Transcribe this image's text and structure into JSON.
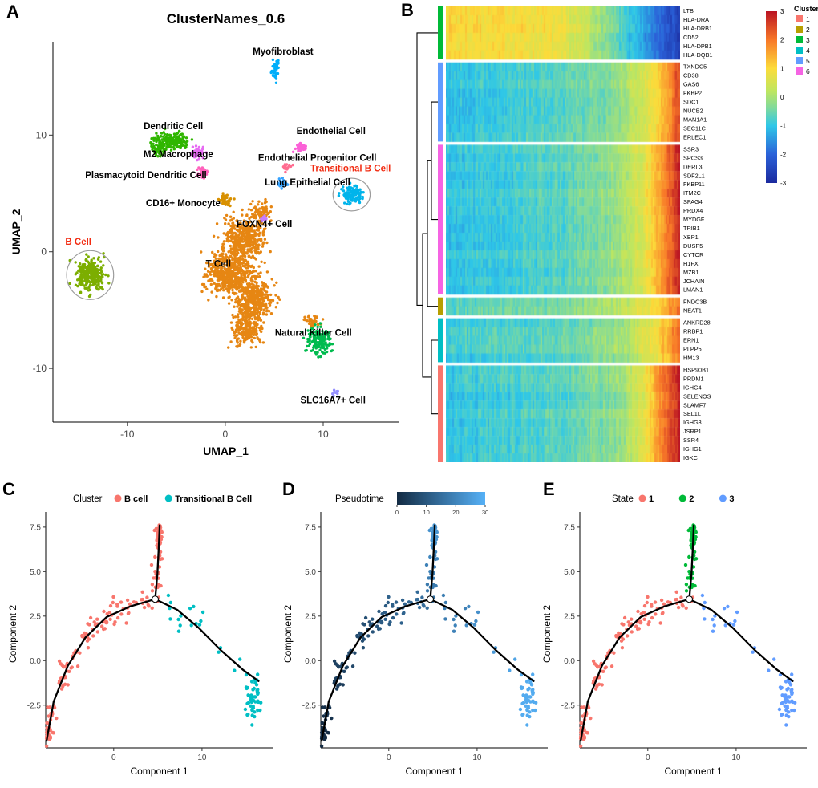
{
  "panel_labels": {
    "a": "A",
    "b": "B",
    "c": "C",
    "d": "D",
    "e": "E"
  },
  "chart_data": [
    {
      "id": "umap",
      "type": "scatter",
      "title": "ClusterNames_0.6",
      "xlabel": "UMAP_1",
      "ylabel": "UMAP_2",
      "xlim": [
        -17.6,
        17.7
      ],
      "ylim": [
        -14.6,
        18.0
      ],
      "xticks": [
        -10,
        0,
        10
      ],
      "yticks": [
        -10,
        0,
        10
      ],
      "clusters": [
        {
          "name": "T Cell",
          "color": "#E68613",
          "blobs": [
            [
              1.8,
              1.2,
              2.1,
              1.9,
              420
            ],
            [
              0.6,
              -1.9,
              2.3,
              1.9,
              520
            ],
            [
              2.9,
              -4.1,
              1.9,
              1.7,
              380
            ],
            [
              2.1,
              -6.7,
              1.5,
              1.3,
              220
            ],
            [
              3.6,
              3.4,
              0.9,
              0.8,
              70
            ],
            [
              8.9,
              -6.0,
              0.8,
              0.6,
              40
            ]
          ]
        },
        {
          "name": "B Cell",
          "color": "#7CAE00",
          "blobs": [
            [
              -13.8,
              -2.0,
              1.5,
              1.3,
              280
            ]
          ]
        },
        {
          "name": "Dendritic Cell",
          "color": "#2FB600",
          "blobs": [
            [
              -5.4,
              9.5,
              1.8,
              0.8,
              200
            ],
            [
              -6.9,
              8.7,
              0.7,
              0.5,
              40
            ]
          ]
        },
        {
          "name": "M2 Macrophage",
          "color": "#E76BF3",
          "blobs": [
            [
              -2.9,
              8.4,
              0.7,
              0.5,
              55
            ]
          ]
        },
        {
          "name": "Plasmacytoid Dendritic Cell",
          "color": "#FF62BC",
          "blobs": [
            [
              -2.4,
              6.8,
              0.55,
              0.4,
              35
            ]
          ]
        },
        {
          "name": "CD16+ Monocyte",
          "color": "#D89000",
          "blobs": [
            [
              0.0,
              4.4,
              0.6,
              0.45,
              40
            ]
          ]
        },
        {
          "name": "Myofibroblast",
          "color": "#00AEFA",
          "blobs": [
            [
              5.1,
              15.7,
              0.5,
              1.0,
              40
            ]
          ]
        },
        {
          "name": "Endothelial Cell",
          "color": "#FB61D7",
          "blobs": [
            [
              7.7,
              8.9,
              0.6,
              0.45,
              40
            ]
          ]
        },
        {
          "name": "Endothelial Progenitor Cell",
          "color": "#FF6C90",
          "blobs": [
            [
              6.2,
              7.3,
              0.5,
              0.35,
              25
            ]
          ]
        },
        {
          "name": "Lung Epithelial Cell",
          "color": "#35A2FF",
          "blobs": [
            [
              5.9,
              5.9,
              0.55,
              0.4,
              30
            ]
          ]
        },
        {
          "name": "Transitional B Cell",
          "color": "#00B4EB",
          "blobs": [
            [
              12.9,
              4.9,
              1.1,
              0.75,
              110
            ]
          ]
        },
        {
          "name": "FOXN4+ Cell",
          "color": "#C77CFF",
          "blobs": [
            [
              3.9,
              2.8,
              0.4,
              0.3,
              18
            ]
          ]
        },
        {
          "name": "Natural Killer Cell",
          "color": "#00BB4E",
          "blobs": [
            [
              9.5,
              -7.6,
              1.2,
              1.1,
              150
            ]
          ]
        },
        {
          "name": "SLC16A7+ Cell",
          "color": "#9590FF",
          "blobs": [
            [
              11.3,
              -12.1,
              0.45,
              0.3,
              10
            ]
          ]
        }
      ],
      "labels": [
        {
          "text": "Myofibroblast",
          "x": 5.9,
          "y": 16.9
        },
        {
          "text": "Dendritic Cell",
          "x": -5.3,
          "y": 10.5
        },
        {
          "text": "Endothelial Cell",
          "x": 10.8,
          "y": 10.1
        },
        {
          "text": "M2 Macrophage",
          "x": -4.8,
          "y": 8.1
        },
        {
          "text": "Endothelial Progenitor Cell",
          "x": 9.4,
          "y": 7.8
        },
        {
          "text": "Plasmacytoid Dendritic Cell",
          "x": -8.1,
          "y": 6.3
        },
        {
          "text": "Lung Epithelial Cell",
          "x": 8.4,
          "y": 5.7
        },
        {
          "text": "CD16+ Monocyte",
          "x": -4.3,
          "y": 3.9
        },
        {
          "text": "Transitional B Cell",
          "x": 12.8,
          "y": 6.9,
          "color": "#F22C12"
        },
        {
          "text": "FOXN4+ Cell",
          "x": 4.0,
          "y": 2.1
        },
        {
          "text": "B Cell",
          "x": -15.0,
          "y": 0.6,
          "color": "#F22C12"
        },
        {
          "text": "T Cell",
          "x": -0.7,
          "y": -1.3
        },
        {
          "text": "Natural Killer Cell",
          "x": 9.0,
          "y": -7.2
        },
        {
          "text": "SLC16A7+ Cell",
          "x": 11.0,
          "y": -13.0
        }
      ],
      "circles": [
        {
          "x": -13.8,
          "y": -2.0,
          "rx": 2.4,
          "ry": 2.1
        },
        {
          "x": 12.9,
          "y": 4.9,
          "rx": 1.9,
          "ry": 1.4
        }
      ]
    },
    {
      "id": "heatmap",
      "type": "heatmap",
      "colormap": [
        [
          -3,
          "#1B2A9E"
        ],
        [
          -2,
          "#2B62D9"
        ],
        [
          -1,
          "#2EC7E8"
        ],
        [
          -0.4,
          "#7CD9A0"
        ],
        [
          0.2,
          "#BEE660"
        ],
        [
          1,
          "#FCDC3A"
        ],
        [
          2,
          "#F87828"
        ],
        [
          3,
          "#BA1423"
        ]
      ],
      "colorbar_ticks": [
        3,
        2,
        1,
        0,
        -1,
        -2,
        -3
      ],
      "cluster_legend": {
        "title": "Cluster",
        "items": [
          {
            "label": "1",
            "color": "#F8766D"
          },
          {
            "label": "2",
            "color": "#B79F00"
          },
          {
            "label": "3",
            "color": "#00BA38"
          },
          {
            "label": "4",
            "color": "#00BFC4"
          },
          {
            "label": "5",
            "color": "#619CFF"
          },
          {
            "label": "6",
            "color": "#F564E3"
          }
        ]
      },
      "blocks": [
        {
          "cluster": "3",
          "sidebar_color": "#00BA38",
          "genes": [
            "LTB",
            "HLA-DRA",
            "HLA-DRB1",
            "CD52",
            "HLA-DPB1",
            "HLA-DQB1"
          ],
          "profile": [
            [
              0,
              1.05
            ],
            [
              0.45,
              0.85
            ],
            [
              0.6,
              0.3
            ],
            [
              0.72,
              -0.5
            ],
            [
              0.85,
              -1.4
            ],
            [
              1,
              -2.5
            ]
          ]
        },
        {
          "cluster": "5",
          "sidebar_color": "#619CFF",
          "genes": [
            "TXNDC5",
            "CD38",
            "GAS6",
            "FKBP2",
            "SDC1",
            "NUCB2",
            "MAN1A1",
            "SEC11C",
            "ERLEC1"
          ],
          "profile": [
            [
              0,
              -1.0
            ],
            [
              0.5,
              -0.65
            ],
            [
              0.72,
              -0.2
            ],
            [
              0.85,
              0.5
            ],
            [
              0.93,
              1.4
            ],
            [
              1,
              2.5
            ]
          ]
        },
        {
          "cluster": "6",
          "sidebar_color": "#F564E3",
          "genes": [
            "SSR3",
            "SPCS3",
            "DERL3",
            "SDF2L1",
            "FKBP11",
            "ITM2C",
            "SPAG4",
            "PRDX4",
            "MYDGF",
            "TRIB1",
            "XBP1",
            "DUSP5",
            "CYTOR",
            "H1FX",
            "MZB1",
            "JCHAIN",
            "LMAN1"
          ],
          "profile": [
            [
              0,
              -1.05
            ],
            [
              0.5,
              -0.7
            ],
            [
              0.72,
              -0.15
            ],
            [
              0.85,
              0.6
            ],
            [
              0.93,
              1.7
            ],
            [
              1,
              2.8
            ]
          ]
        },
        {
          "cluster": "2",
          "sidebar_color": "#B79F00",
          "genes": [
            "FNDC3B",
            "NEAT1"
          ],
          "profile": [
            [
              0,
              -0.8
            ],
            [
              0.5,
              -0.45
            ],
            [
              0.75,
              0.1
            ],
            [
              0.9,
              0.9
            ],
            [
              1,
              1.9
            ]
          ]
        },
        {
          "cluster": "4",
          "sidebar_color": "#00BFC4",
          "genes": [
            "ANKRD28",
            "RRBP1",
            "ERN1",
            "PLPP5",
            "HM13"
          ],
          "profile": [
            [
              0,
              -0.9
            ],
            [
              0.55,
              -0.55
            ],
            [
              0.78,
              0.0
            ],
            [
              0.9,
              0.8
            ],
            [
              1,
              2.1
            ]
          ]
        },
        {
          "cluster": "1",
          "sidebar_color": "#F8766D",
          "genes": [
            "HSP90B1",
            "PRDM1",
            "IGHG4",
            "SELENOS",
            "SLAMF7",
            "SEL1L",
            "IGHG3",
            "JSRP1",
            "SSR4",
            "IGHG1",
            "IGKC"
          ],
          "profile": [
            [
              0,
              -1.0
            ],
            [
              0.5,
              -0.7
            ],
            [
              0.75,
              -0.2
            ],
            [
              0.86,
              0.8
            ],
            [
              0.93,
              1.9
            ],
            [
              1,
              2.9
            ]
          ]
        }
      ]
    },
    {
      "id": "trajectory",
      "type": "scatter",
      "xlabel": "Component 1",
      "ylabel": "Component 2",
      "xlim": [
        -7.7,
        18.0
      ],
      "ylim": [
        -4.9,
        7.9
      ],
      "xticks": [
        0,
        10
      ],
      "yticks": [
        -2.5,
        0,
        2.5,
        5,
        7.5
      ],
      "ytick_labels": [
        "-2.5",
        "0.0",
        "2.5",
        "5.0",
        "7.5"
      ],
      "tree": {
        "main": [
          [
            -7.6,
            -4.5
          ],
          [
            -6.8,
            -2.3
          ],
          [
            -5.2,
            -0.3
          ],
          [
            -3.2,
            1.3
          ],
          [
            -0.8,
            2.45
          ],
          [
            1.9,
            3.05
          ],
          [
            4.7,
            3.45
          ]
        ],
        "top": [
          [
            4.7,
            3.45
          ],
          [
            4.95,
            4.9
          ],
          [
            5.1,
            6.3
          ],
          [
            5.2,
            7.6
          ]
        ],
        "right": [
          [
            4.7,
            3.45
          ],
          [
            7.2,
            2.85
          ],
          [
            9.6,
            1.85
          ],
          [
            12.1,
            0.6
          ],
          [
            14.6,
            -0.5
          ],
          [
            16.4,
            -1.15
          ]
        ]
      },
      "branch_node": [
        4.7,
        3.45
      ],
      "groups": [
        {
          "name": "arc",
          "path": "main",
          "n": 115,
          "jitter": 0.36,
          "trange": [
            0.0,
            1.0
          ],
          "blob": [
            -7.3,
            -4.1,
            0.5,
            0.45,
            22,
            0.02
          ]
        },
        {
          "name": "top",
          "path": "top",
          "n": 40,
          "jitter": 0.26,
          "trange": [
            0.1,
            1.0
          ],
          "blob": [
            5.15,
            7.1,
            0.35,
            0.5,
            18,
            0.95
          ]
        },
        {
          "name": "right",
          "path": "right",
          "n": 20,
          "jitter": 0.55,
          "trange": [
            0.1,
            0.8
          ],
          "blob": [
            15.9,
            -2.1,
            0.95,
            1.25,
            45,
            0.9
          ]
        }
      ],
      "pseudo_ranges": {
        "arc": [
          0,
          0.52
        ],
        "top": [
          0.55,
          0.8
        ],
        "right": [
          0.55,
          1.0
        ]
      },
      "panels": {
        "c": {
          "legend_title": "Cluster",
          "items": [
            {
              "label": "B cell",
              "color": "#F8766D"
            },
            {
              "label": "Transitional B Cell",
              "color": "#00BFC4"
            }
          ],
          "group_colors": {
            "arc": "#F8766D",
            "top": "#F8766D",
            "right": "#00BFC4"
          }
        },
        "d": {
          "legend_title": "Pseudotime",
          "gradient": [
            "#132B43",
            "#56B1F7"
          ],
          "ticks": [
            0,
            10,
            20,
            30
          ]
        },
        "e": {
          "legend_title": "State",
          "items": [
            {
              "label": "1",
              "color": "#F8766D"
            },
            {
              "label": "2",
              "color": "#00BA38"
            },
            {
              "label": "3",
              "color": "#619CFF"
            }
          ],
          "group_colors": {
            "arc": "#F8766D",
            "top": "#00BA38",
            "right": "#619CFF"
          }
        }
      }
    }
  ]
}
